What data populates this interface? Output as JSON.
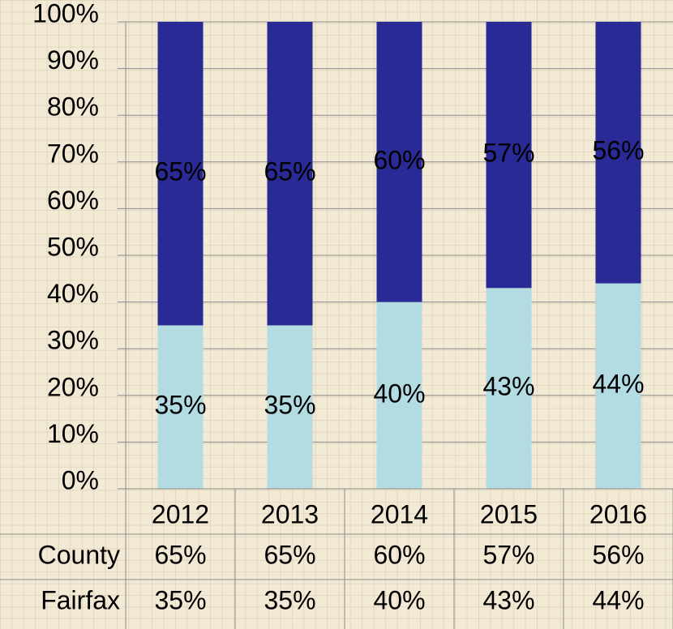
{
  "chart_data": {
    "type": "stacked_bar",
    "categories": [
      "2012",
      "2013",
      "2014",
      "2015",
      "2016"
    ],
    "series": [
      {
        "name": "County",
        "color": "#2a2a96",
        "values": [
          65,
          65,
          60,
          57,
          56
        ],
        "value_labels": [
          "65%",
          "65%",
          "60%",
          "57%",
          "56%"
        ]
      },
      {
        "name": "Fairfax",
        "color": "#b2dce2",
        "values": [
          35,
          35,
          40,
          43,
          44
        ],
        "value_labels": [
          "35%",
          "35%",
          "40%",
          "43%",
          "44%"
        ]
      }
    ],
    "ylim": [
      0,
      100
    ],
    "yticks": [
      {
        "value": 0,
        "label": "0%"
      },
      {
        "value": 10,
        "label": "10%"
      },
      {
        "value": 20,
        "label": "20%"
      },
      {
        "value": 30,
        "label": "30%"
      },
      {
        "value": 40,
        "label": "40%"
      },
      {
        "value": 50,
        "label": "50%"
      },
      {
        "value": 60,
        "label": "60%"
      },
      {
        "value": 70,
        "label": "70%"
      },
      {
        "value": 80,
        "label": "80%"
      },
      {
        "value": 90,
        "label": "90%"
      },
      {
        "value": 100,
        "label": "100%"
      }
    ],
    "grid": true
  }
}
